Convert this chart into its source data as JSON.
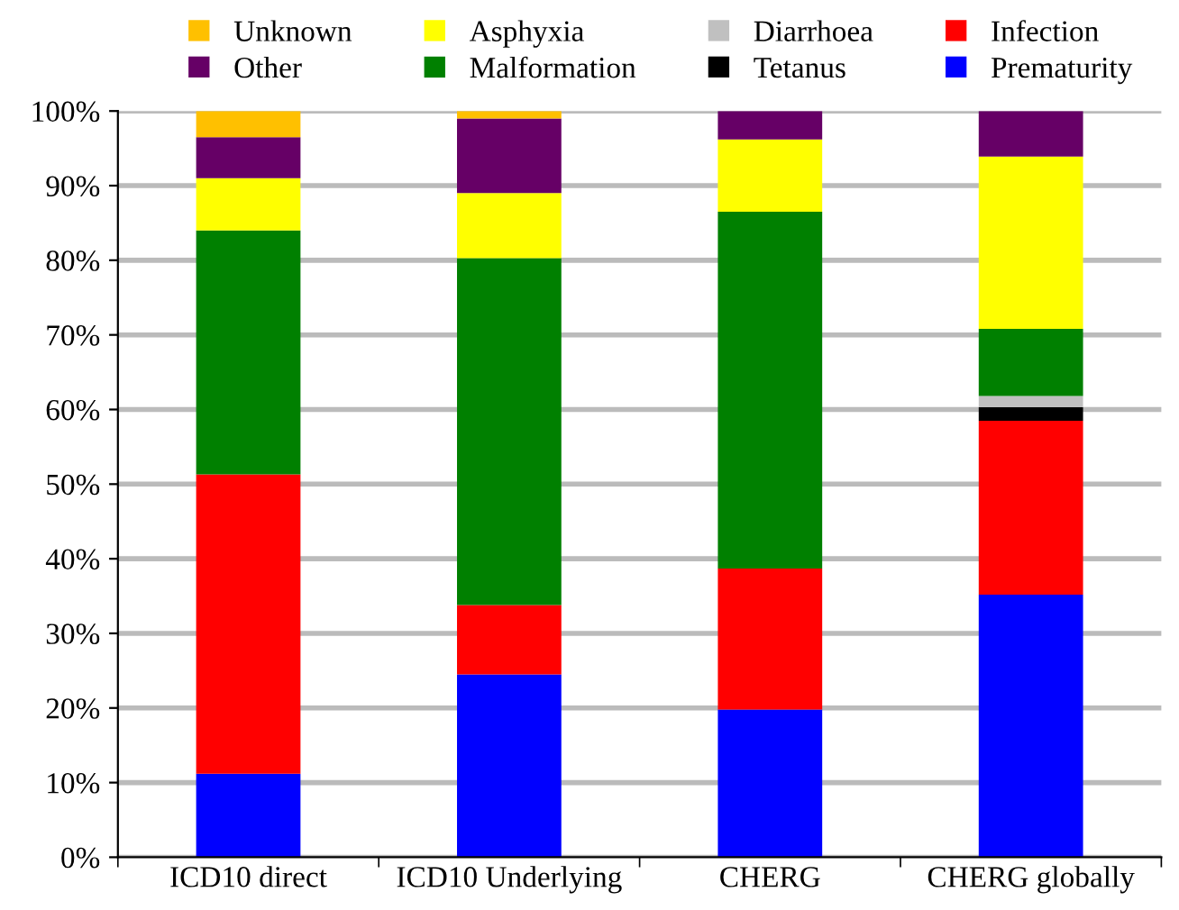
{
  "chart_data": {
    "type": "bar",
    "stacked": true,
    "categories": [
      "ICD10 direct",
      "ICD10 Underlying",
      "CHERG",
      "CHERG globally"
    ],
    "series": [
      {
        "name": "Prematurity",
        "color": "#0000ff",
        "values": [
          11.2,
          24.5,
          19.8,
          35.2
        ]
      },
      {
        "name": "Infection",
        "color": "#ff0000",
        "values": [
          40.1,
          9.3,
          18.9,
          23.3
        ]
      },
      {
        "name": "Tetanus",
        "color": "#000000",
        "values": [
          0,
          0,
          0,
          1.8
        ]
      },
      {
        "name": "Diarrhoea",
        "color": "#c0c0c0",
        "values": [
          0,
          0,
          0,
          1.5
        ]
      },
      {
        "name": "Malformation",
        "color": "#008000",
        "values": [
          32.7,
          46.5,
          47.8,
          9
        ]
      },
      {
        "name": "Asphyxia",
        "color": "#ffff00",
        "values": [
          7,
          8.7,
          9.7,
          23.1
        ]
      },
      {
        "name": "Other",
        "color": "#660066",
        "values": [
          5.5,
          10,
          3.8,
          6.1
        ]
      },
      {
        "name": "Unknown",
        "color": "#ffc000",
        "values": [
          3.5,
          1,
          0,
          0
        ]
      }
    ],
    "ylim": [
      0,
      100
    ],
    "yticks": [
      {
        "value": 0,
        "label": "0%"
      },
      {
        "value": 10,
        "label": "10%"
      },
      {
        "value": 20,
        "label": "20%"
      },
      {
        "value": 30,
        "label": "30%"
      },
      {
        "value": 40,
        "label": "40%"
      },
      {
        "value": 50,
        "label": "50%"
      },
      {
        "value": 60,
        "label": "60%"
      },
      {
        "value": 70,
        "label": "70%"
      },
      {
        "value": 80,
        "label": "80%"
      },
      {
        "value": 90,
        "label": "90%"
      },
      {
        "value": 100,
        "label": "100%"
      }
    ],
    "grid": "y",
    "legend": "top"
  }
}
